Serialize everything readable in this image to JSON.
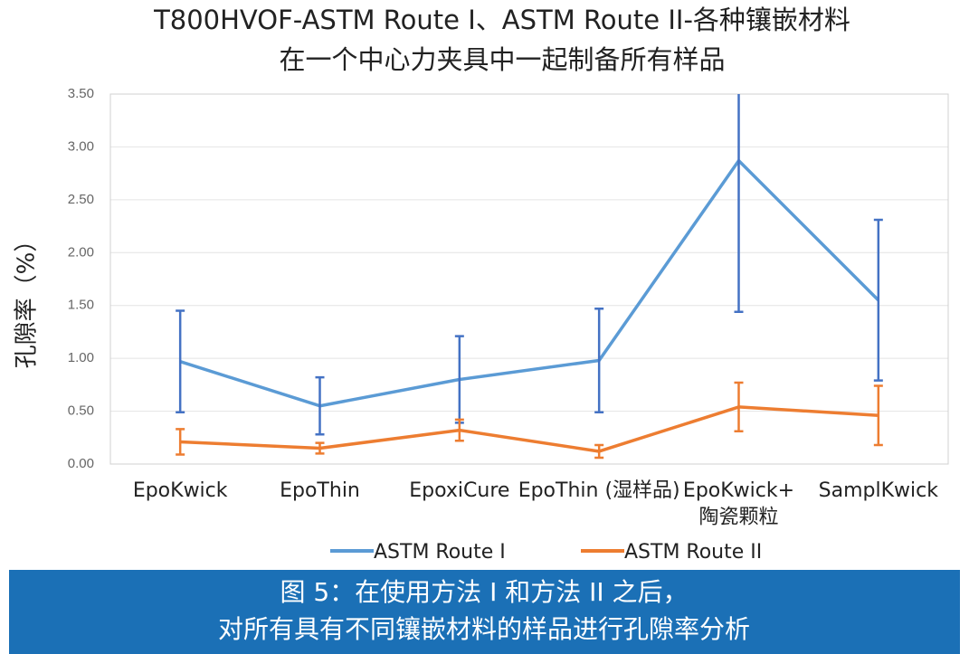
{
  "chart_data": {
    "type": "line",
    "title": [
      "T800HVOF-ASTM Route I、ASTM Route II-各种镶嵌材料",
      "在一个中心力夹具中一起制备所有样品"
    ],
    "y_label": "孔隙率（%）",
    "categories": [
      "EpoKwick",
      "EpoThin",
      "EpoxiCure",
      "EpoThin (湿样品)",
      "EpoKwick+\n陶瓷颗粒",
      "SamplKwick"
    ],
    "series": [
      {
        "name": "ASTM Route I",
        "color": "#5b9bd5",
        "error_color": "#4472c4",
        "values": [
          0.97,
          0.55,
          0.8,
          0.98,
          2.87,
          1.55
        ],
        "errors": [
          0.48,
          0.27,
          0.41,
          0.49,
          1.43,
          0.76
        ]
      },
      {
        "name": "ASTM Route II",
        "color": "#ed7d31",
        "error_color": "#ed7d31",
        "values": [
          0.21,
          0.15,
          0.32,
          0.12,
          0.54,
          0.46
        ],
        "errors": [
          0.12,
          0.05,
          0.1,
          0.06,
          0.23,
          0.28
        ]
      }
    ],
    "ylim": [
      0,
      3.5
    ],
    "yticks": [
      {
        "value": 0,
        "label": "0.00"
      },
      {
        "value": 0.5,
        "label": "0.50"
      },
      {
        "value": 1,
        "label": "1.00"
      },
      {
        "value": 1.5,
        "label": "1.50"
      },
      {
        "value": 2,
        "label": "2.00"
      },
      {
        "value": 2.5,
        "label": "2.50"
      },
      {
        "value": 3,
        "label": "3.00"
      },
      {
        "value": 3.5,
        "label": "3.50"
      }
    ],
    "grid": true,
    "legend": "bottom"
  },
  "caption": [
    "图 5：在使用方法 I 和方法 II 之后，",
    "对所有具有不同镶嵌材料的样品进行孔隙率分析"
  ]
}
